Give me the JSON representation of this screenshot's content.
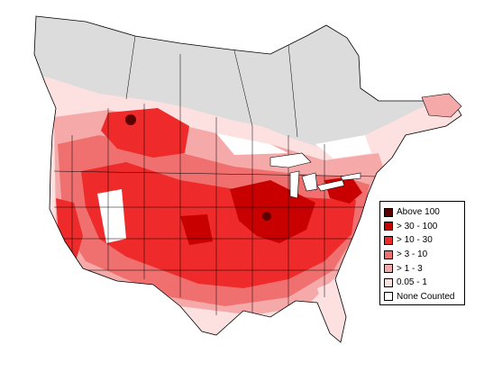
{
  "legend": {
    "items": [
      {
        "label": "Above 100",
        "color": "#5c0000"
      },
      {
        "label": "> 30 - 100",
        "color": "#c80000"
      },
      {
        "label": "> 10 - 30",
        "color": "#ee2a2a"
      },
      {
        "label": "> 3 - 10",
        "color": "#f07070"
      },
      {
        "label": "> 1 - 3",
        "color": "#f6a9a9"
      },
      {
        "label": "0.05 - 1",
        "color": "#fde0e0"
      },
      {
        "label": "None Counted",
        "color": "#ffffff"
      }
    ]
  },
  "colors": {
    "no_data": "#dcdcdc",
    "boundary": "#000000",
    "background": "#ffffff"
  }
}
